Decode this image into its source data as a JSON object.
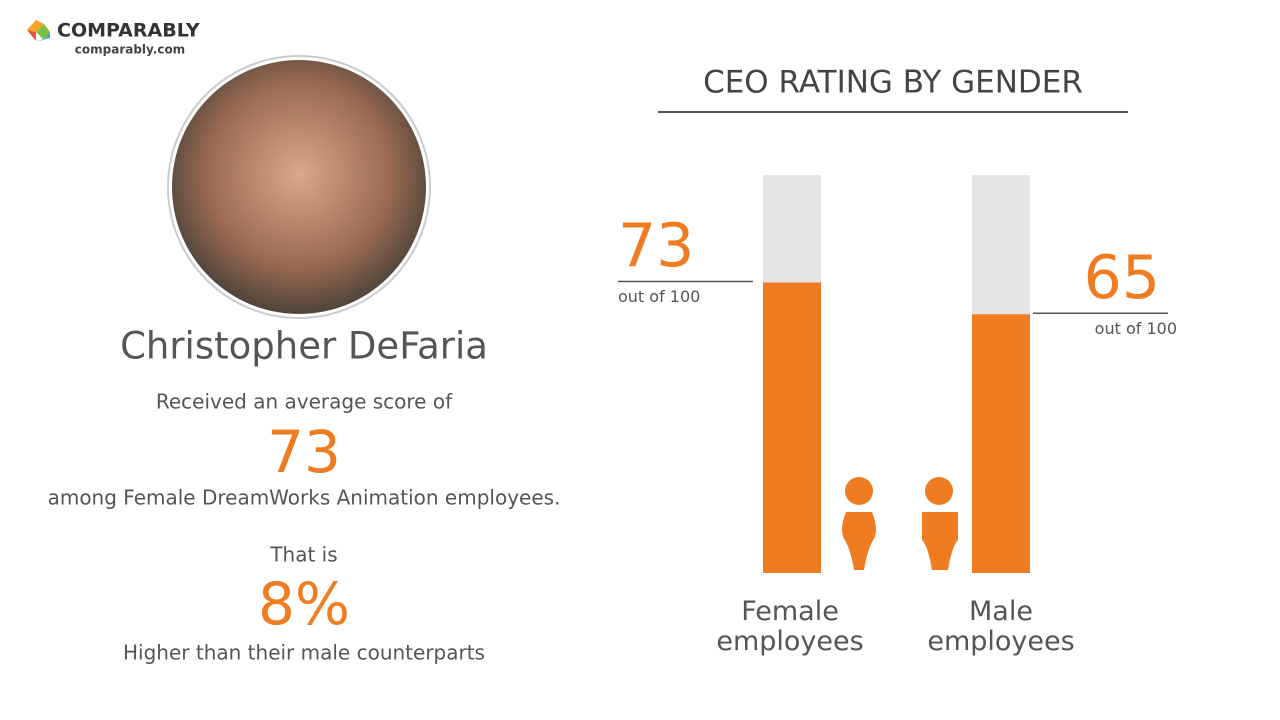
{
  "brand": {
    "name": "COMPARABLY",
    "url": "comparably.com"
  },
  "profile": {
    "name": "Christopher DeFaria",
    "intro": "Received an average score of",
    "score": "73",
    "context": "among Female DreamWorks Animation employees.",
    "lead": "That is",
    "difference": "8%",
    "comparison": "Higher than their male counterparts"
  },
  "chart_data": {
    "type": "bar",
    "title": "CEO RATING BY GENDER",
    "categories": [
      "Female employees",
      "Male employees"
    ],
    "values": [
      73,
      65
    ],
    "value_note": "out of 100",
    "ylim": [
      0,
      100
    ],
    "color": "#f07c22",
    "track_color": "#e6e6e6"
  }
}
